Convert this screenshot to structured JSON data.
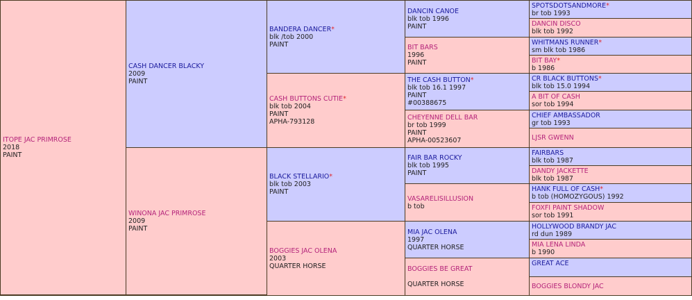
{
  "pedigree": {
    "subject": {
      "name": "ITOPE JAC PRIMROSE",
      "lines": [
        "2018",
        "PAINT"
      ]
    },
    "sire": {
      "name": "CASH DANCER BLACKY",
      "lines": [
        "2009",
        "PAINT"
      ]
    },
    "dam": {
      "name": "WINONA JAC PRIMROSE",
      "lines": [
        "2009",
        "PAINT"
      ]
    },
    "gen3": [
      {
        "name": "BANDERA DANCER",
        "star": "*",
        "lines": [
          "blk /tob 2000",
          "PAINT"
        ]
      },
      {
        "name": "CASH BUTTONS CUTIE",
        "star": "*",
        "lines": [
          "blk tob 2004",
          "PAINT",
          "APHA-793128"
        ]
      },
      {
        "name": "BLACK STELLARIO",
        "star": "*",
        "lines": [
          "blk tob 2003",
          "PAINT"
        ]
      },
      {
        "name": "BOGGIES JAC OLENA",
        "star": "",
        "lines": [
          "2003",
          "QUARTER HORSE"
        ]
      }
    ],
    "gen4": [
      {
        "name": "DANCIN CANOE",
        "star": "",
        "lines": [
          "blk tob 1996",
          "PAINT"
        ]
      },
      {
        "name": "BIT BARS",
        "star": "",
        "lines": [
          "1996",
          "PAINT"
        ]
      },
      {
        "name": "THE CASH BUTTON",
        "star": "*",
        "lines": [
          "blk tob 16.1 1997",
          "PAINT",
          "#00388675"
        ]
      },
      {
        "name": "CHEYENNE DELL BAR",
        "star": "",
        "lines": [
          "br tob 1999",
          "PAINT",
          "APHA-00523607"
        ]
      },
      {
        "name": "FAIR BAR ROCKY",
        "star": "",
        "lines": [
          "blk tob 1995",
          "PAINT"
        ]
      },
      {
        "name": "VASARELISILLUSION",
        "star": "",
        "lines": [
          "b tob"
        ]
      },
      {
        "name": "MIA JAC OLENA",
        "star": "",
        "lines": [
          "1997",
          "QUARTER HORSE"
        ]
      },
      {
        "name": "BOGGIES BE GREAT",
        "star": "",
        "lines": [
          "",
          "QUARTER HORSE"
        ]
      }
    ],
    "gen5": [
      {
        "name": "SPOTSDOTSANDMORE",
        "star": "*",
        "lines": [
          "br tob 1993"
        ]
      },
      {
        "name": "DANCIN DISCO",
        "star": "",
        "lines": [
          "blk tob 1992"
        ]
      },
      {
        "name": "WHITMANS RUNNER",
        "star": "*",
        "lines": [
          "sm blk tob 1986"
        ]
      },
      {
        "name": "BIT BAY",
        "star": "*",
        "lines": [
          "b 1986"
        ]
      },
      {
        "name": "CR BLACK BUTTONS",
        "star": "*",
        "lines": [
          "blk tob 15.0 1994"
        ]
      },
      {
        "name": "A BIT OF CASH",
        "star": "",
        "lines": [
          "sor tob 1994"
        ]
      },
      {
        "name": "CHIEF AMBASSADOR",
        "star": "",
        "lines": [
          "gr tob 1993"
        ]
      },
      {
        "name": "LJSR GWENN",
        "star": "",
        "lines": []
      },
      {
        "name": "FAIRBARS",
        "star": "",
        "lines": [
          "blk tob 1987"
        ]
      },
      {
        "name": "DANDY JACKETTE",
        "star": "",
        "lines": [
          "blk tob 1987"
        ]
      },
      {
        "name": "HANK FULL OF CASH",
        "star": "*",
        "lines": [
          "b tob (HOMOZYGOUS) 1992"
        ]
      },
      {
        "name": "FOXFI PAINT SHADOW",
        "star": "",
        "lines": [
          "sor tob 1991"
        ]
      },
      {
        "name": "HOLLYWOOD BRANDY JAC",
        "star": "",
        "lines": [
          "rd dun 1989"
        ]
      },
      {
        "name": "MIA LENA LINDA",
        "star": "",
        "lines": [
          "b 1990"
        ]
      },
      {
        "name": "GREAT ACE",
        "star": "",
        "lines": [
          ""
        ]
      },
      {
        "name": "BOGGIES BLONDY JAC",
        "star": "",
        "lines": []
      }
    ]
  }
}
